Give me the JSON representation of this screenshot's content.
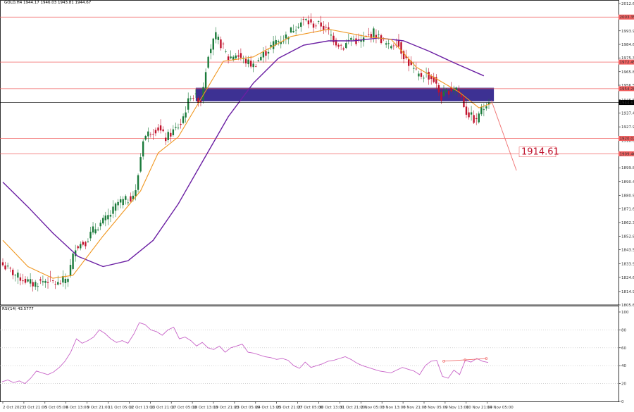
{
  "header": {
    "main_info": "GOLD,H4  1944.17 1946.03 1943.81 1944.67",
    "rsi_info": "RSI(14) 43.5777"
  },
  "colors": {
    "bull": "#1a7a3a",
    "bear": "#c0122c",
    "ema": "#f0961e",
    "sma": "#6b1fa3",
    "level": "#f06060",
    "zone": "#2c1f8a",
    "rsi": "#c864c8",
    "trend": "#f07070"
  },
  "chart_data": [
    {
      "type": "candlestick",
      "symbol": "GOLD",
      "timeframe": "H4",
      "ylim": [
        1805.65,
        2012.65
      ],
      "y_ticks": [
        "2012.65",
        "2003.35",
        "1993.90",
        "1984.60",
        "1975.30",
        "1965.85",
        "1956.55",
        "1946.50",
        "1937.40",
        "1927.95",
        "1918.65",
        "1909.35",
        "1899.85",
        "1890.40",
        "1880.90",
        "1871.60",
        "1862.30",
        "1852.85",
        "1843.55",
        "1833.90",
        "1824.60",
        "1814.90",
        "1805.65"
      ],
      "x_labels": [
        "2 Oct 2023",
        "3 Oct 21:00",
        "5 Oct 05:00",
        "6 Oct 13:00",
        "9 Oct 21:00",
        "11 Oct 05:00",
        "12 Oct 13:00",
        "13 Oct 21:00",
        "17 Oct 05:00",
        "18 Oct 13:00",
        "19 Oct 21:00",
        "23 Oct 05:00",
        "24 Oct 13:00",
        "25 Oct 21:00",
        "27 Oct 05:00",
        "30 Oct 13:00",
        "31 Oct 21:00",
        "2 Nov 05:00",
        "3 Nov 13:00",
        "6 Nov 21:00",
        "8 Nov 05:00",
        "9 Nov 13:00",
        "10 Nov 21:00",
        "14 Nov 05:00"
      ],
      "current_price_label": "1944.67",
      "levels": [
        {
          "price": 2003.35,
          "label": "2003.35"
        },
        {
          "price": 1972.45,
          "label": "1972.45"
        },
        {
          "price": 1954.2,
          "label": "1954.20"
        },
        {
          "price": 1920.02,
          "label": "1920.02"
        },
        {
          "price": 1909.46,
          "label": "1909.46"
        }
      ],
      "zone": {
        "from": 1945.5,
        "to": 1954.8
      },
      "target_label": "1914.61",
      "trend_line": [
        [
          195,
          1946.0
        ],
        [
          205,
          1898.0
        ]
      ],
      "key_closes": [
        [
          0,
          1833
        ],
        [
          6,
          1825
        ],
        [
          12,
          1820
        ],
        [
          18,
          1823
        ],
        [
          22,
          1820
        ],
        [
          26,
          1825
        ],
        [
          29,
          1846
        ],
        [
          33,
          1849
        ],
        [
          36,
          1857
        ],
        [
          40,
          1863
        ],
        [
          43,
          1868
        ],
        [
          46,
          1876
        ],
        [
          50,
          1878
        ],
        [
          53,
          1883
        ],
        [
          56,
          1920
        ],
        [
          59,
          1925
        ],
        [
          62,
          1927
        ],
        [
          65,
          1920
        ],
        [
          68,
          1925
        ],
        [
          71,
          1930
        ],
        [
          75,
          1950
        ],
        [
          79,
          1946
        ],
        [
          82,
          1979
        ],
        [
          85,
          1990
        ],
        [
          88,
          1982
        ],
        [
          90,
          1975
        ],
        [
          93,
          1978
        ],
        [
          96,
          1974
        ],
        [
          100,
          1970
        ],
        [
          103,
          1976
        ],
        [
          106,
          1981
        ],
        [
          109,
          1987
        ],
        [
          112,
          1988
        ],
        [
          115,
          1994
        ],
        [
          118,
          1999
        ],
        [
          121,
          2001
        ],
        [
          123,
          1998
        ],
        [
          127,
          1998
        ],
        [
          130,
          1993
        ],
        [
          133,
          1986
        ],
        [
          136,
          1983
        ],
        [
          139,
          1989
        ],
        [
          142,
          1986
        ],
        [
          145,
          1989
        ],
        [
          148,
          1993
        ],
        [
          151,
          1988
        ],
        [
          154,
          1983
        ],
        [
          157,
          1987
        ],
        [
          160,
          1977
        ],
        [
          163,
          1969
        ],
        [
          166,
          1963
        ],
        [
          169,
          1964
        ],
        [
          172,
          1960
        ],
        [
          175,
          1948
        ],
        [
          178,
          1953
        ],
        [
          181,
          1955
        ],
        [
          183,
          1948
        ],
        [
          185,
          1938
        ],
        [
          187,
          1935
        ],
        [
          189,
          1931
        ],
        [
          190,
          1938
        ],
        [
          192,
          1941
        ],
        [
          193,
          1945
        ],
        [
          194,
          1944.67
        ]
      ],
      "ema_points": [
        [
          0,
          1850
        ],
        [
          10,
          1832
        ],
        [
          20,
          1824
        ],
        [
          28,
          1826
        ],
        [
          40,
          1853
        ],
        [
          55,
          1884
        ],
        [
          62,
          1910
        ],
        [
          70,
          1921
        ],
        [
          78,
          1944
        ],
        [
          88,
          1973
        ],
        [
          100,
          1976
        ],
        [
          115,
          1990
        ],
        [
          130,
          1995
        ],
        [
          145,
          1990
        ],
        [
          155,
          1988
        ],
        [
          165,
          1969
        ],
        [
          174,
          1960
        ],
        [
          182,
          1952
        ],
        [
          190,
          1941
        ],
        [
          195,
          1944
        ]
      ],
      "sma_points": [
        [
          0,
          1890
        ],
        [
          10,
          1873
        ],
        [
          20,
          1855
        ],
        [
          30,
          1839
        ],
        [
          40,
          1832
        ],
        [
          50,
          1836
        ],
        [
          60,
          1850
        ],
        [
          70,
          1875
        ],
        [
          80,
          1905
        ],
        [
          90,
          1935
        ],
        [
          100,
          1958
        ],
        [
          110,
          1975
        ],
        [
          120,
          1984
        ],
        [
          130,
          1987
        ],
        [
          140,
          1987
        ],
        [
          150,
          1989
        ],
        [
          160,
          1987
        ],
        [
          170,
          1980
        ],
        [
          180,
          1972
        ],
        [
          192,
          1963
        ]
      ]
    },
    {
      "type": "line",
      "name": "RSI(14)",
      "ylim": [
        0,
        100
      ],
      "y_ticks": [
        "100",
        "80",
        "60",
        "40",
        "20",
        "0"
      ],
      "values": [
        22,
        24,
        21,
        23,
        20,
        26,
        34,
        32,
        30,
        33,
        38,
        45,
        55,
        70,
        65,
        68,
        72,
        80,
        76,
        70,
        66,
        68,
        65,
        75,
        88,
        86,
        80,
        78,
        74,
        80,
        83,
        70,
        72,
        68,
        62,
        66,
        60,
        58,
        62,
        55,
        60,
        62,
        64,
        55,
        54,
        52,
        50,
        49,
        47,
        48,
        46,
        40,
        37,
        44,
        38,
        40,
        42,
        45,
        46,
        48,
        50,
        47,
        43,
        40,
        38,
        36,
        34,
        33,
        32,
        35,
        38,
        36,
        34,
        30,
        40,
        45,
        46,
        28,
        26,
        35,
        30,
        46,
        44,
        48,
        45,
        43.58
      ],
      "divergence_line": [
        [
          176,
          45
        ],
        [
          193,
          48
        ]
      ]
    }
  ]
}
